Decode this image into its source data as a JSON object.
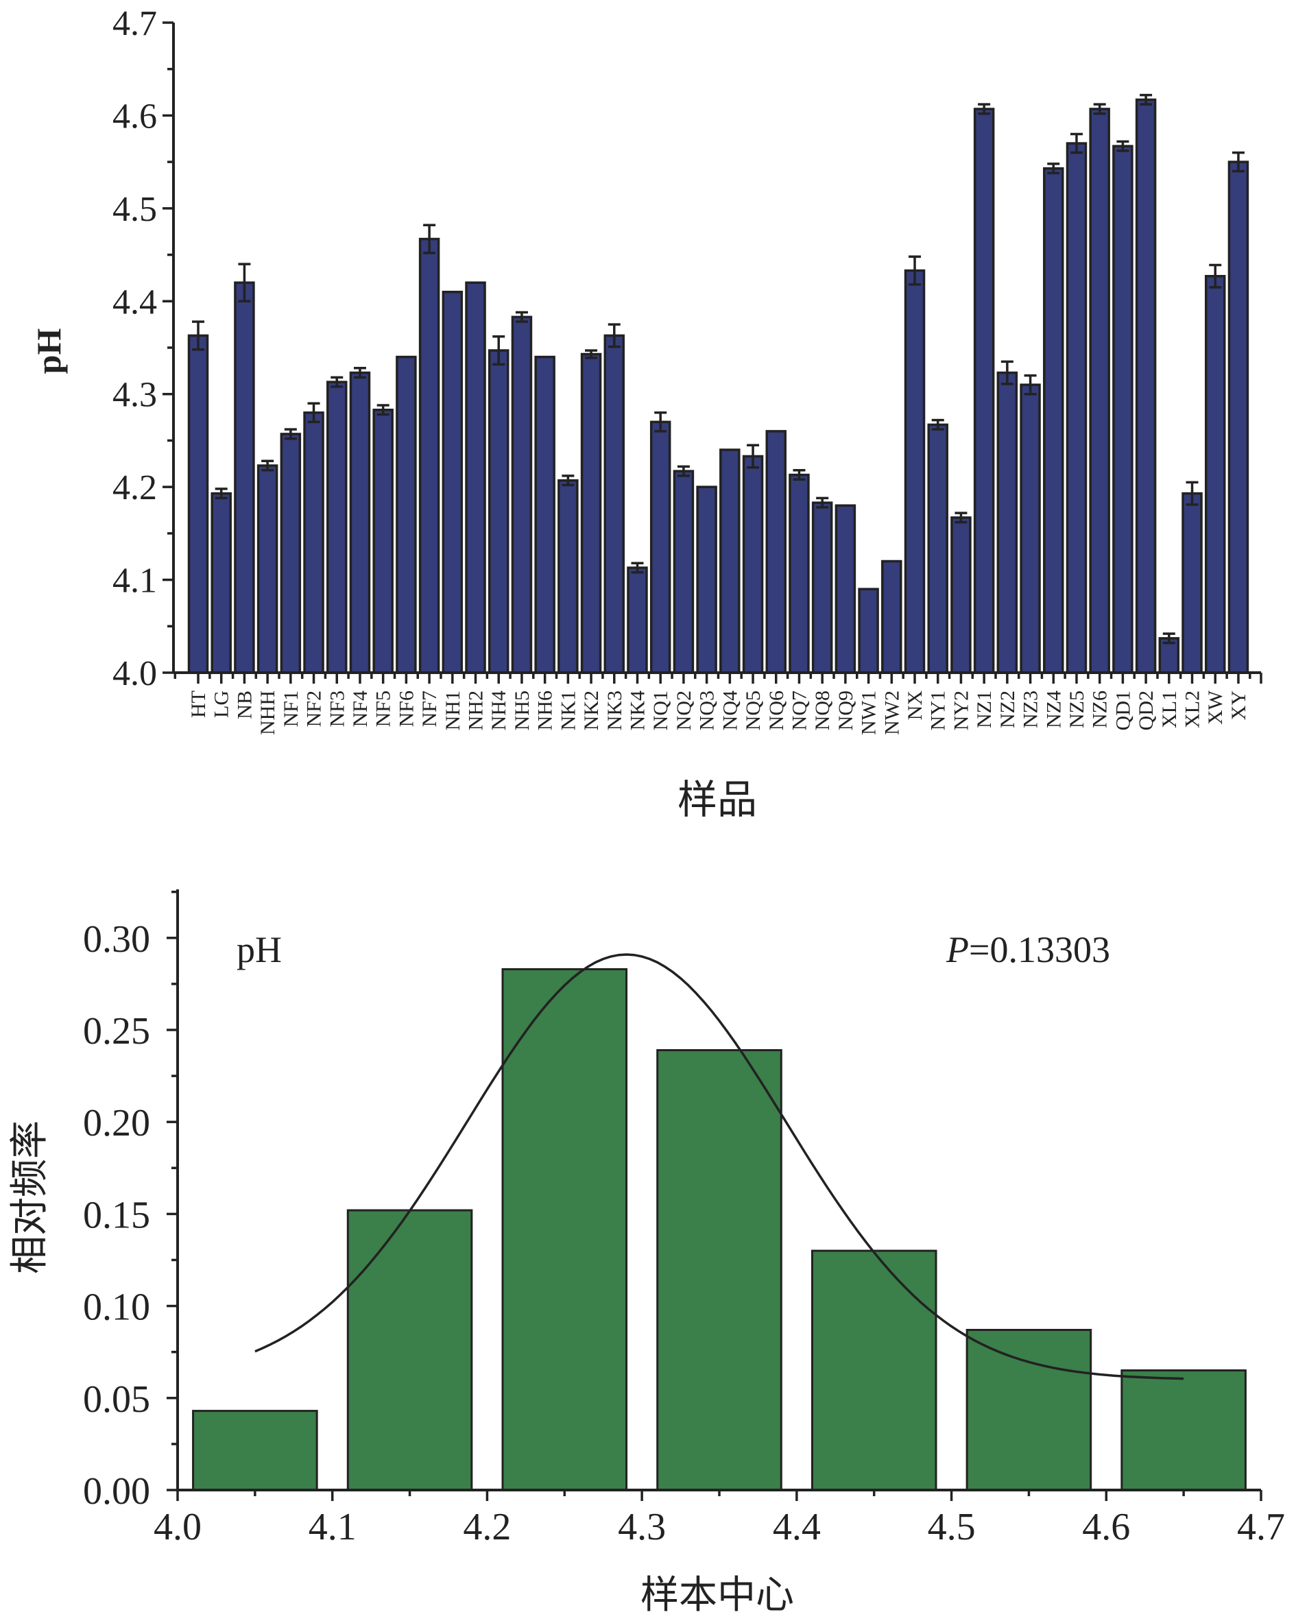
{
  "chart_data": [
    {
      "type": "bar",
      "title": "",
      "xlabel": "样品",
      "ylabel": "pH",
      "ylim": [
        4.0,
        4.7
      ],
      "yticks": [
        "4.0",
        "4.1",
        "4.2",
        "4.3",
        "4.4",
        "4.5",
        "4.6",
        "4.7"
      ],
      "bar_color": "#353d7b",
      "categories": [
        "HT",
        "LG",
        "NB",
        "NHH",
        "NF1",
        "NF2",
        "NF3",
        "NF4",
        "NF5",
        "NF6",
        "NF7",
        "NH1",
        "NH2",
        "NH4",
        "NH5",
        "NH6",
        "NK1",
        "NK2",
        "NK3",
        "NK4",
        "NQ1",
        "NQ2",
        "NQ3",
        "NQ4",
        "NQ5",
        "NQ6",
        "NQ7",
        "NQ8",
        "NQ9",
        "NW1",
        "NW2",
        "NX",
        "NY1",
        "NY2",
        "NZ1",
        "NZ2",
        "NZ3",
        "NZ4",
        "NZ5",
        "NZ6",
        "QD1",
        "QD2",
        "XL1",
        "XL2",
        "XW",
        "XY"
      ],
      "values": [
        4.363,
        4.193,
        4.42,
        4.223,
        4.257,
        4.28,
        4.313,
        4.323,
        4.283,
        4.34,
        4.467,
        4.41,
        4.42,
        4.347,
        4.383,
        4.34,
        4.207,
        4.343,
        4.363,
        4.113,
        4.27,
        4.217,
        4.2,
        4.24,
        4.233,
        4.26,
        4.213,
        4.183,
        4.18,
        4.09,
        4.12,
        4.433,
        4.267,
        4.167,
        4.607,
        4.323,
        4.31,
        4.543,
        4.57,
        4.607,
        4.567,
        4.617,
        4.037,
        4.193,
        4.427,
        4.55
      ],
      "errors": [
        0.015,
        0.005,
        0.02,
        0.005,
        0.005,
        0.01,
        0.005,
        0.005,
        0.005,
        0,
        0.015,
        0,
        0,
        0.015,
        0.005,
        0,
        0.005,
        0.004,
        0.012,
        0.005,
        0.01,
        0.005,
        0,
        0,
        0.012,
        0,
        0.005,
        0.005,
        0,
        0,
        0,
        0.015,
        0.005,
        0.005,
        0.005,
        0.012,
        0.01,
        0.005,
        0.01,
        0.005,
        0.005,
        0.005,
        0.005,
        0.012,
        0.012,
        0.01
      ]
    },
    {
      "type": "bar",
      "subtype": "histogram",
      "title": "",
      "xlabel": "样本中心",
      "ylabel": "相对频率",
      "xlim": [
        4.0,
        4.7
      ],
      "ylim": [
        0,
        0.32
      ],
      "xticks": [
        "4.0",
        "4.1",
        "4.2",
        "4.3",
        "4.4",
        "4.5",
        "4.6",
        "4.7"
      ],
      "yticks": [
        "0.00",
        "0.05",
        "0.10",
        "0.15",
        "0.20",
        "0.25",
        "0.30"
      ],
      "bar_color": "#3b7f4a",
      "bin_centers": [
        4.05,
        4.15,
        4.25,
        4.35,
        4.45,
        4.55,
        4.65
      ],
      "bin_width": 0.08,
      "values": [
        0.043,
        0.152,
        0.283,
        0.239,
        0.13,
        0.087,
        0.065
      ],
      "fit_curve": {
        "type": "gaussian",
        "y0": 0.06,
        "A": 0.231,
        "xc": 4.29,
        "w": 0.103,
        "x_range": [
          4.05,
          4.65
        ]
      },
      "annotations": {
        "variable": "pH",
        "p_label": "P",
        "p_value": "=0.13303"
      }
    }
  ]
}
